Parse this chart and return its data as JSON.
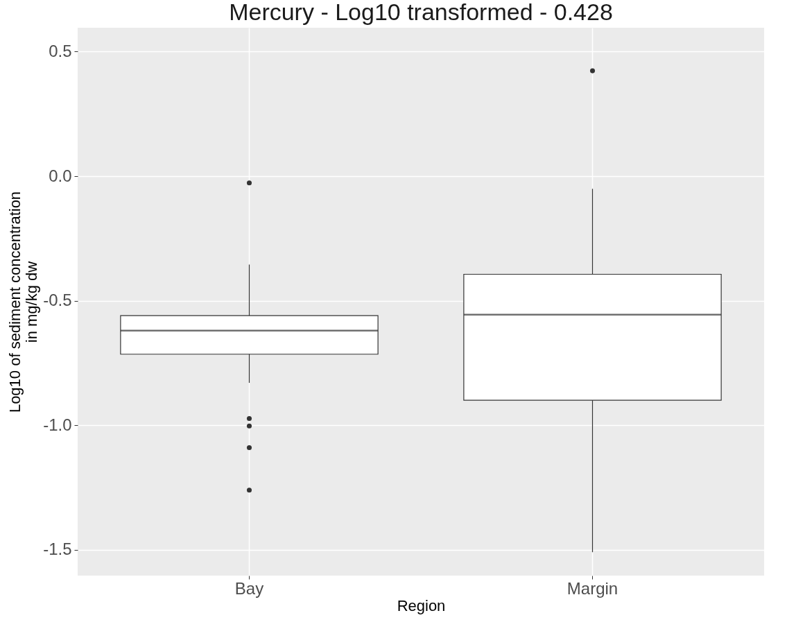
{
  "chart_data": {
    "type": "box",
    "title": "Mercury - Log10 transformed - 0.428",
    "xlabel": "Region",
    "ylabel": "Log10 of sediment concentration\nin mg/kg dw",
    "categories": [
      "Bay",
      "Margin"
    ],
    "boxes": [
      {
        "low": -0.83,
        "q1": -0.715,
        "median": -0.62,
        "q3": -0.56,
        "high": -0.355,
        "outliers": [
          -0.027,
          -0.973,
          -1.003,
          -1.09,
          -1.261
        ]
      },
      {
        "low": -1.51,
        "q1": -0.9,
        "median": -0.556,
        "q3": -0.394,
        "high": -0.051,
        "outliers": [
          0.423
        ]
      }
    ],
    "ylim": [
      -1.604,
      0.596
    ],
    "yticks": [
      {
        "value": -1.5,
        "label": "-1.5"
      },
      {
        "value": -1,
        "label": "-1.0"
      },
      {
        "value": -0.5,
        "label": "-0.5"
      },
      {
        "value": 0,
        "label": "0.0"
      },
      0.5
    ],
    "grid": true
  }
}
